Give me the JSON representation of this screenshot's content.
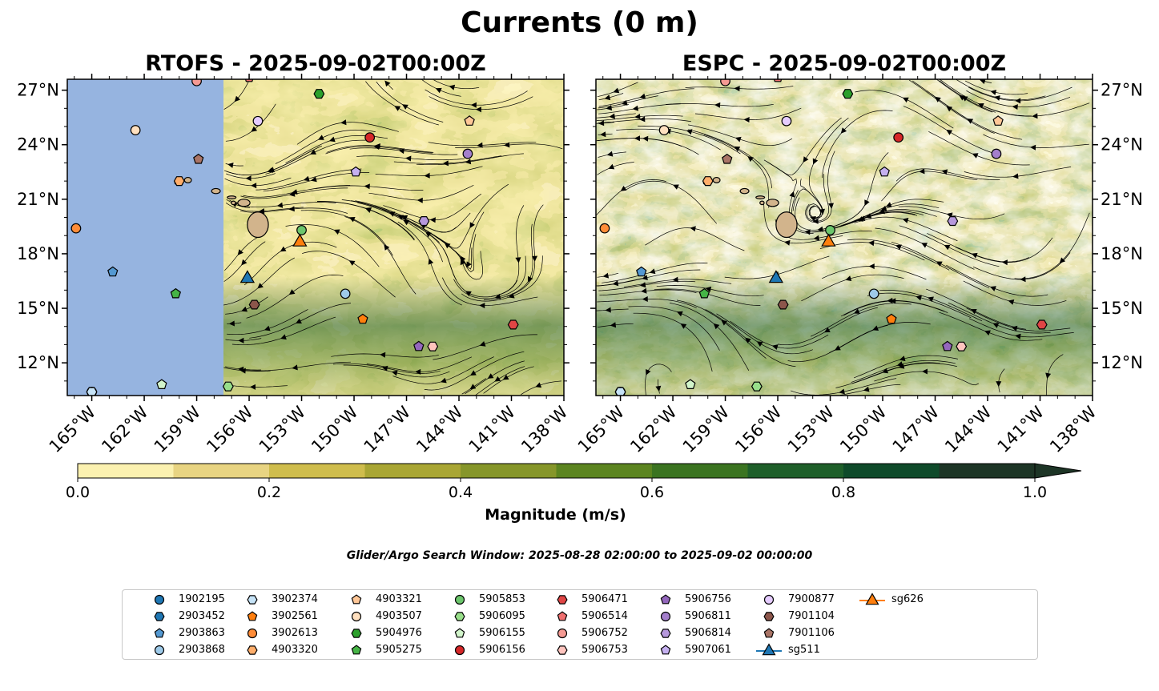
{
  "title": "Currents (0 m)",
  "panels": [
    {
      "title": "RTOFS - 2025-09-02T00:00Z",
      "model": "RTOFS"
    },
    {
      "title": "ESPC - 2025-09-02T00:00Z",
      "model": "ESPC"
    }
  ],
  "map": {
    "lon_range": [
      -166.4,
      -138
    ],
    "lat_range": [
      10.2,
      27.6
    ],
    "lon_ticks": [
      "165°W",
      "162°W",
      "159°W",
      "156°W",
      "153°W",
      "150°W",
      "147°W",
      "144°W",
      "141°W",
      "138°W"
    ],
    "lat_ticks": [
      "27°N",
      "24°N",
      "21°N",
      "18°N",
      "15°N",
      "12°N"
    ],
    "land_color": "#d2b48c",
    "nodata_color": "#96b4e0"
  },
  "colorbar": {
    "label": "Magnitude (m/s)",
    "ticks": [
      "0.0",
      "0.2",
      "0.4",
      "0.6",
      "0.8",
      "1.0"
    ],
    "levels": [
      0,
      0.1,
      0.2,
      0.3,
      0.4,
      0.5,
      0.6,
      0.7,
      0.8,
      0.9,
      1.0
    ],
    "colors": [
      "#fbf1b0",
      "#e8d482",
      "#cfbd4d",
      "#a9a634",
      "#86962a",
      "#5c8520",
      "#3b7421",
      "#1e5f2a",
      "#0e4a2a",
      "#1d3526"
    ],
    "extend": "max"
  },
  "search_window": "Glider/Argo Search Window: 2025-08-28 02:00:00 to 2025-09-02 00:00:00",
  "legend": [
    {
      "label": "1902195",
      "marker": "circle",
      "color": "#1f77b4"
    },
    {
      "label": "2903452",
      "marker": "hexagon",
      "color": "#1f77b4"
    },
    {
      "label": "2903863",
      "marker": "pentagon",
      "color": "#5499d2"
    },
    {
      "label": "2903868",
      "marker": "circle",
      "color": "#9ecae9"
    },
    {
      "label": "3902374",
      "marker": "hexagon",
      "color": "#c6e3f7"
    },
    {
      "label": "3902561",
      "marker": "pentagon",
      "color": "#ff7f0e"
    },
    {
      "label": "3902613",
      "marker": "circle",
      "color": "#ff8c38"
    },
    {
      "label": "4903320",
      "marker": "hexagon",
      "color": "#ffae6b"
    },
    {
      "label": "4903321",
      "marker": "pentagon",
      "color": "#ffc797"
    },
    {
      "label": "4903507",
      "marker": "circle",
      "color": "#ffe0bf"
    },
    {
      "label": "5904976",
      "marker": "hexagon",
      "color": "#2ca02c"
    },
    {
      "label": "5905275",
      "marker": "pentagon",
      "color": "#46b446"
    },
    {
      "label": "5905853",
      "marker": "circle",
      "color": "#6cc66c"
    },
    {
      "label": "5906095",
      "marker": "hexagon",
      "color": "#98df8a"
    },
    {
      "label": "5906155",
      "marker": "pentagon",
      "color": "#d2f5cb"
    },
    {
      "label": "5906156",
      "marker": "circle",
      "color": "#d62728"
    },
    {
      "label": "5906471",
      "marker": "hexagon",
      "color": "#e04545"
    },
    {
      "label": "5906514",
      "marker": "pentagon",
      "color": "#f07070"
    },
    {
      "label": "5906752",
      "marker": "circle",
      "color": "#f59a93"
    },
    {
      "label": "5906753",
      "marker": "hexagon",
      "color": "#ffc4be"
    },
    {
      "label": "5906756",
      "marker": "pentagon",
      "color": "#9467bd"
    },
    {
      "label": "5906811",
      "marker": "circle",
      "color": "#a47fcc"
    },
    {
      "label": "5906814",
      "marker": "hexagon",
      "color": "#b698dc"
    },
    {
      "label": "5907061",
      "marker": "pentagon",
      "color": "#c5b0f0"
    },
    {
      "label": "7900877",
      "marker": "circle",
      "color": "#e5ccff"
    },
    {
      "label": "7901104",
      "marker": "hexagon",
      "color": "#8c564b"
    },
    {
      "label": "7901106",
      "marker": "pentagon",
      "color": "#a97466"
    },
    {
      "label": "sg511",
      "marker": "triangle",
      "color": "#1f77b4"
    },
    {
      "label": "sg626",
      "marker": "triangle",
      "color": "#ff7f0e"
    }
  ],
  "platforms": [
    {
      "id": "1902195",
      "lon": -165.0,
      "lat": 10.4
    },
    {
      "id": "2903452",
      "lon": -165.0,
      "lat": 10.4
    },
    {
      "id": "2903863",
      "lon": -163.8,
      "lat": 17.0
    },
    {
      "id": "2903868",
      "lon": -150.5,
      "lat": 15.8
    },
    {
      "id": "3902374",
      "lon": -165.0,
      "lat": 10.4
    },
    {
      "id": "3902561",
      "lon": -149.5,
      "lat": 14.4
    },
    {
      "id": "3902613",
      "lon": -165.9,
      "lat": 19.4
    },
    {
      "id": "4903320",
      "lon": -160.0,
      "lat": 22.0
    },
    {
      "id": "4903321",
      "lon": -143.4,
      "lat": 25.3
    },
    {
      "id": "4903507",
      "lon": -162.5,
      "lat": 24.8
    },
    {
      "id": "5904976",
      "lon": -152.0,
      "lat": 26.8
    },
    {
      "id": "5905275",
      "lon": -160.2,
      "lat": 15.8
    },
    {
      "id": "5905853",
      "lon": -153.0,
      "lat": 19.3
    },
    {
      "id": "5906095",
      "lon": -157.2,
      "lat": 10.7
    },
    {
      "id": "5906155",
      "lon": -161.0,
      "lat": 10.8
    },
    {
      "id": "5906156",
      "lon": -149.1,
      "lat": 24.4
    },
    {
      "id": "5906471",
      "lon": -140.9,
      "lat": 14.1
    },
    {
      "id": "5906514",
      "lon": -156.0,
      "lat": 27.7
    },
    {
      "id": "5906752",
      "lon": -159.0,
      "lat": 27.5
    },
    {
      "id": "5906753",
      "lon": -145.5,
      "lat": 12.9
    },
    {
      "id": "5906756",
      "lon": -146.3,
      "lat": 12.9
    },
    {
      "id": "5906811",
      "lon": -143.5,
      "lat": 23.5
    },
    {
      "id": "5906814",
      "lon": -146.0,
      "lat": 19.8
    },
    {
      "id": "5907061",
      "lon": -149.9,
      "lat": 22.5
    },
    {
      "id": "7900877",
      "lon": -155.5,
      "lat": 25.3
    },
    {
      "id": "7901104",
      "lon": -155.7,
      "lat": 15.2
    },
    {
      "id": "7901106",
      "lon": -158.9,
      "lat": 23.2
    },
    {
      "id": "sg511",
      "lon": -156.1,
      "lat": 16.7
    },
    {
      "id": "sg626",
      "lon": -153.1,
      "lat": 18.7
    }
  ]
}
